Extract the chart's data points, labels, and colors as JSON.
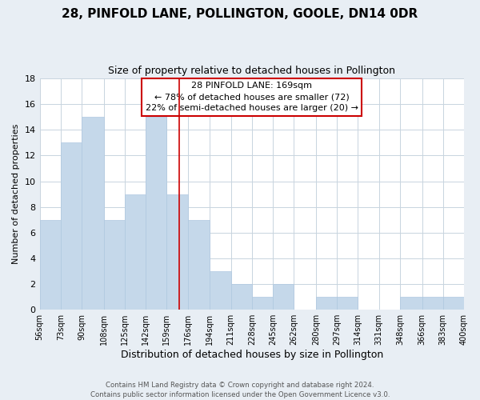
{
  "title": "28, PINFOLD LANE, POLLINGTON, GOOLE, DN14 0DR",
  "subtitle": "Size of property relative to detached houses in Pollington",
  "xlabel": "Distribution of detached houses by size in Pollington",
  "ylabel": "Number of detached properties",
  "bar_color": "#c5d8ea",
  "bar_edge_color": "#b0c8e0",
  "annotation_line1": "28 PINFOLD LANE: 169sqm",
  "annotation_line2": "← 78% of detached houses are smaller (72)",
  "annotation_line3": "22% of semi-detached houses are larger (20) →",
  "annotation_box_edge_color": "#cc0000",
  "property_marker_color": "#cc0000",
  "property_size": 169,
  "bin_edges": [
    56,
    73,
    90,
    108,
    125,
    142,
    159,
    176,
    194,
    211,
    228,
    245,
    262,
    280,
    297,
    314,
    331,
    348,
    366,
    383,
    400
  ],
  "counts": [
    7,
    13,
    15,
    7,
    9,
    15,
    9,
    7,
    3,
    2,
    1,
    2,
    0,
    1,
    1,
    0,
    0,
    1,
    1,
    1
  ],
  "ylim": [
    0,
    18
  ],
  "yticks": [
    0,
    2,
    4,
    6,
    8,
    10,
    12,
    14,
    16,
    18
  ],
  "footer_text": "Contains HM Land Registry data © Crown copyright and database right 2024.\nContains public sector information licensed under the Open Government Licence v3.0.",
  "background_color": "#e8eef4",
  "plot_background_color": "white",
  "grid_color": "#c8d4de"
}
